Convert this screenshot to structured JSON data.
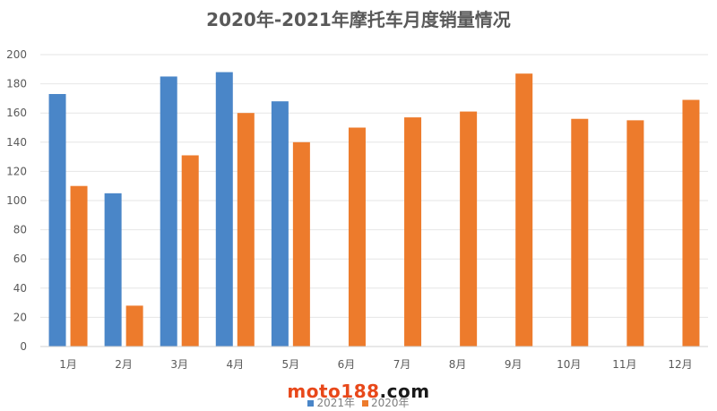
{
  "chart_data": {
    "type": "bar",
    "title": "2020年-2021年摩托车月度销量情况",
    "xlabel": "",
    "ylabel": "",
    "categories": [
      "1月",
      "2月",
      "3月",
      "4月",
      "5月",
      "6月",
      "7月",
      "8月",
      "9月",
      "10月",
      "11月",
      "12月"
    ],
    "series": [
      {
        "name": "2021年",
        "color": "#4a86c8",
        "values": [
          173,
          105,
          185,
          188,
          168,
          null,
          null,
          null,
          null,
          null,
          null,
          null
        ]
      },
      {
        "name": "2020年",
        "color": "#ed7b2c",
        "values": [
          110,
          28,
          131,
          160,
          140,
          150,
          157,
          161,
          187,
          156,
          155,
          169
        ]
      }
    ],
    "ylim": [
      0,
      200
    ],
    "yticks": [
      0,
      20,
      40,
      60,
      80,
      100,
      120,
      140,
      160,
      180,
      200
    ],
    "grid": true,
    "legend_position": "bottom"
  },
  "watermark": {
    "part1": "moto188",
    "part2": ".com"
  }
}
